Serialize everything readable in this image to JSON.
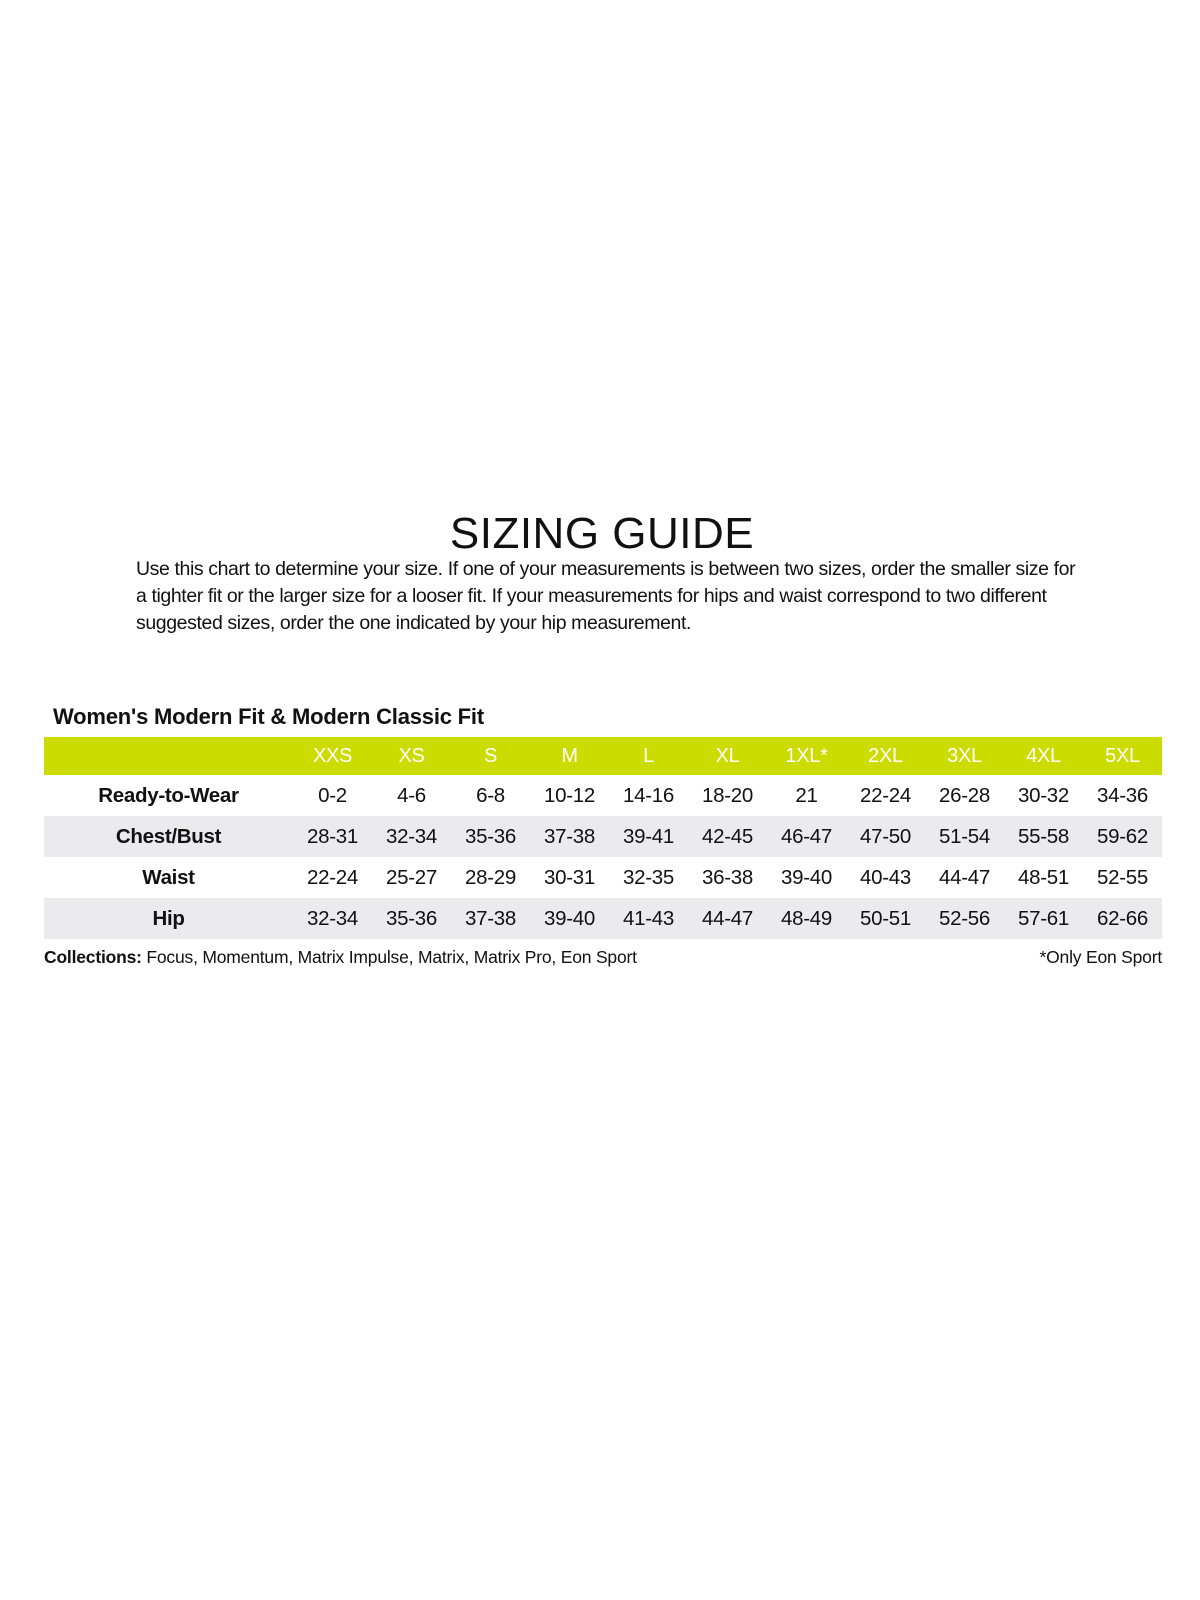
{
  "title": "SIZING GUIDE",
  "intro": "Use this chart to determine your size. If one of your measurements is between two sizes, order the smaller size for a tighter fit or the larger size for a looser fit. If your measurements for hips and waist correspond to two different suggested sizes, order the one indicated by your hip measurement.",
  "table": {
    "title": "Women's Modern Fit & Modern Classic Fit",
    "header_color": "#cddc00",
    "sizes": [
      "XXS",
      "XS",
      "S",
      "M",
      "L",
      "XL",
      "1XL*",
      "2XL",
      "3XL",
      "4XL",
      "5XL"
    ],
    "rows": [
      {
        "label": "Ready-to-Wear",
        "values": [
          "0-2",
          "4-6",
          "6-8",
          "10-12",
          "14-16",
          "18-20",
          "21",
          "22-24",
          "26-28",
          "30-32",
          "34-36"
        ]
      },
      {
        "label": "Chest/Bust",
        "values": [
          "28-31",
          "32-34",
          "35-36",
          "37-38",
          "39-41",
          "42-45",
          "46-47",
          "47-50",
          "51-54",
          "55-58",
          "59-62"
        ]
      },
      {
        "label": "Waist",
        "values": [
          "22-24",
          "25-27",
          "28-29",
          "30-31",
          "32-35",
          "36-38",
          "39-40",
          "40-43",
          "44-47",
          "48-51",
          "52-55"
        ]
      },
      {
        "label": "Hip",
        "values": [
          "32-34",
          "35-36",
          "37-38",
          "39-40",
          "41-43",
          "44-47",
          "48-49",
          "50-51",
          "52-56",
          "57-61",
          "62-66"
        ]
      }
    ]
  },
  "footer": {
    "collections_label": "Collections:",
    "collections": " Focus, Momentum, Matrix Impulse, Matrix, Matrix Pro, Eon Sport",
    "note": "*Only Eon Sport"
  }
}
